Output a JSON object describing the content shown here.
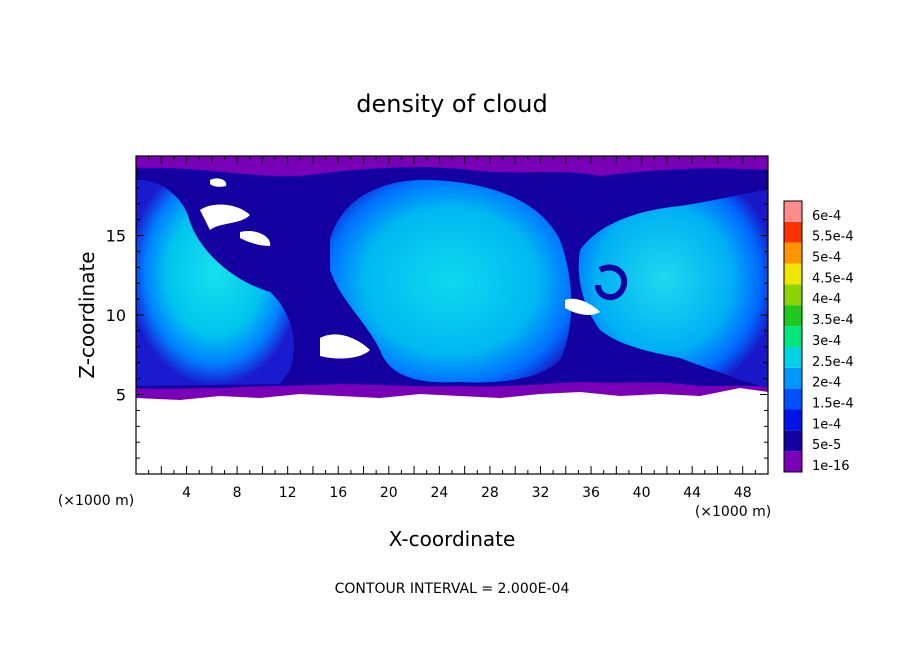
{
  "chart_data": {
    "type": "heatmap",
    "title": "density of cloud",
    "xlabel": "X-coordinate",
    "ylabel": "Z-coordinate",
    "x_unit": "(×1000 m)",
    "y_unit": "(×1000 m)",
    "xlim": [
      0,
      50
    ],
    "ylim": [
      0,
      20
    ],
    "x_ticks": [
      4,
      8,
      12,
      16,
      20,
      24,
      28,
      32,
      36,
      40,
      44,
      48
    ],
    "y_ticks": [
      5,
      10,
      15
    ],
    "footer": "CONTOUR INTERVAL = 2.000E-04",
    "colorbar": {
      "levels": [
        "1e-16",
        "5e-5",
        "1e-4",
        "1.5e-4",
        "2e-4",
        "2.5e-4",
        "3e-4",
        "3.5e-4",
        "4e-4",
        "4.5e-4",
        "5e-4",
        "5.5e-4",
        "6e-4"
      ],
      "colors": [
        "#7a00b8",
        "#1400a0",
        "#0014e6",
        "#0050ff",
        "#0096ff",
        "#00d2e6",
        "#00e678",
        "#1ec81e",
        "#8cd200",
        "#f0e600",
        "#ff9600",
        "#ff3200",
        "#ff8c8c"
      ]
    },
    "field_description_free": true
  }
}
